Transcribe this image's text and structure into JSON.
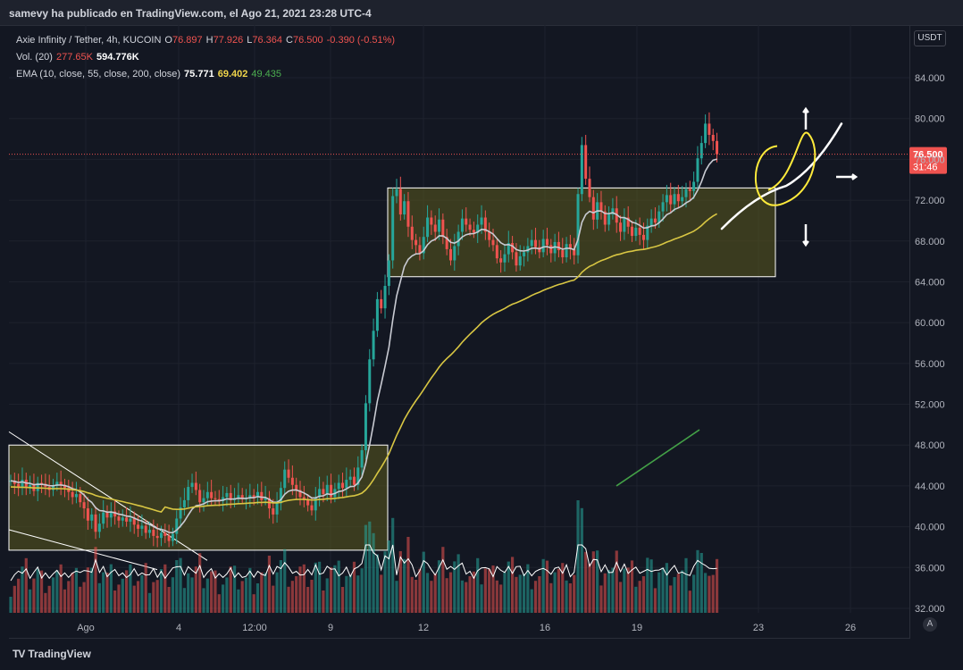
{
  "publisher": "samevy ha publicado en TradingView.com, el Ago 21, 2021 23:28 UTC-4",
  "brand": "TradingView",
  "brand_logo": "TV",
  "currency_button": "USDT",
  "auto_button": "A",
  "legend": {
    "symbol": "Axie Infinity / Tether, 4h, KUCOIN",
    "o_label": "O",
    "o_value": "76.897",
    "h_label": "H",
    "h_value": "77.926",
    "l_label": "L",
    "l_value": "76.364",
    "c_label": "C",
    "c_value": "76.500",
    "change": "-0.390 (-0.51%)",
    "vol_label": "Vol. (20)",
    "vol_value1": "277.65K",
    "vol_value2": "594.776K",
    "ema_label": "EMA (10, close, 55, close, 200, close)",
    "ema1": "75.771",
    "ema2": "69.402",
    "ema3": "49.435"
  },
  "colors": {
    "up": "#26a69a",
    "down": "#ef5350",
    "ema10": "#c9cbd3",
    "ema55": "#d8c643",
    "ema200": "#43a047",
    "box_fill": "#5b5a1e",
    "annot": "#ffeb3b"
  },
  "chart_data": {
    "type": "candlestick",
    "title": "Axie Infinity / Tether, 4h, KUCOIN",
    "x_ticks": [
      "Ago",
      "4",
      "12:00",
      "9",
      "12",
      "16",
      "19",
      "23",
      "26"
    ],
    "y_ticks": [
      "84.000",
      "80.000",
      "76.000",
      "72.000",
      "68.000",
      "64.000",
      "60.000",
      "56.000",
      "52.000",
      "48.000",
      "44.000",
      "40.000",
      "36.000",
      "32.000"
    ],
    "ylim": [
      31.5,
      86.5
    ],
    "last_price": "76.500",
    "countdown": "31:46",
    "close_series": [
      44.5,
      44.2,
      43.9,
      44.6,
      43.8,
      44.1,
      43.5,
      44.3,
      44.2,
      43.9,
      43.6,
      44.0,
      44.4,
      44.1,
      43.8,
      43.4,
      42.9,
      43.2,
      42.4,
      41.8,
      40.6,
      41.2,
      39.5,
      40.3,
      41.4,
      40.9,
      41.5,
      41.0,
      40.6,
      40.9,
      40.5,
      40.8,
      40.2,
      39.8,
      40.1,
      39.4,
      39.7,
      39.1,
      38.9,
      39.4,
      39.1,
      38.6,
      39.3,
      40.8,
      41.9,
      42.6,
      43.9,
      44.3,
      43.6,
      42.4,
      42.8,
      43.4,
      42.8,
      42.7,
      42.5,
      42.9,
      43.3,
      42.6,
      42.8,
      43.1,
      42.7,
      42.8,
      43.1,
      42.9,
      43.4,
      42.6,
      42.8,
      41.8,
      41.2,
      42.3,
      43.8,
      45.6,
      44.8,
      44.1,
      43.6,
      42.9,
      42.6,
      42.1,
      41.6,
      42.9,
      43.7,
      43.2,
      44.1,
      42.9,
      43.7,
      44.3,
      43.8,
      44.6,
      44.9,
      44.1,
      45.8,
      47.5,
      52.1,
      56.4,
      59.2,
      62.3,
      61.4,
      63.6,
      66.1,
      72.4,
      73.1,
      70.6,
      71.9,
      69.4,
      68.1,
      67.6,
      66.8,
      68.4,
      70.3,
      69.6,
      68.9,
      70.1,
      68.4,
      67.2,
      66.1,
      67.5,
      68.9,
      70.2,
      69.6,
      69.1,
      68.8,
      69.6,
      70.3,
      68.9,
      68.1,
      67.6,
      66.3,
      65.9,
      66.7,
      67.8,
      66.9,
      65.6,
      66.5,
      66.9,
      67.5,
      68.1,
      67.4,
      66.9,
      68.2,
      67.6,
      66.8,
      67.9,
      67.1,
      66.4,
      67.7,
      67.2,
      66.6,
      72.6,
      77.4,
      74.1,
      72.3,
      70.1,
      71.8,
      70.9,
      69.6,
      70.6,
      71.2,
      69.8,
      68.9,
      70.3,
      69.4,
      68.5,
      69.3,
      68.6,
      68.1,
      69.5,
      70.2,
      69.8,
      70.9,
      71.8,
      72.5,
      71.6,
      72.6,
      71.9,
      72.3,
      73.1,
      72.9,
      73.8,
      76.1,
      77.6,
      79.5,
      78.4,
      77.8,
      76.5
    ],
    "series": [
      {
        "name": "EMA 10",
        "value": "75.771"
      },
      {
        "name": "EMA 55",
        "value": "69.402"
      },
      {
        "name": "EMA 200",
        "value": "49.435"
      },
      {
        "name": "Vol. (20)",
        "value": "594.776K"
      }
    ],
    "volume_max": 594.776,
    "grid": true
  }
}
